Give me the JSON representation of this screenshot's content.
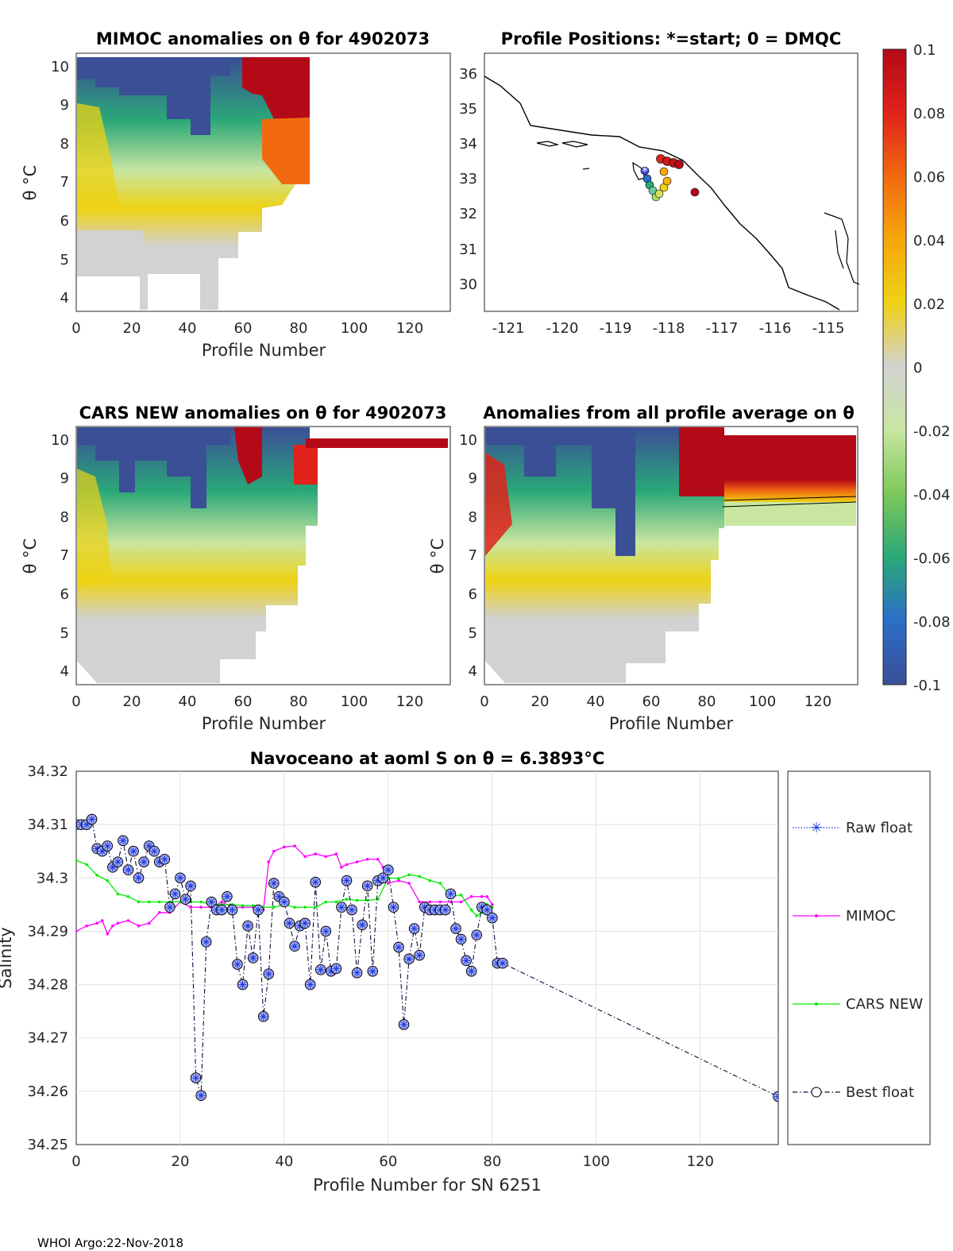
{
  "footer": "WHOI Argo:22-Nov-2018",
  "colors": {
    "raw": "#1f3bd6",
    "mimoc": "#ff00ff",
    "cars": "#00ee00",
    "best": "#0a0a3c",
    "marker_face": "#aab2ff"
  },
  "colorbar": {
    "ticks": [
      "0.1",
      "0.08",
      "0.06",
      "0.04",
      "0.02",
      "0",
      "-0.02",
      "-0.04",
      "-0.06",
      "-0.08",
      "-0.1"
    ],
    "stops": [
      "#b40a18",
      "#e0221a",
      "#f26a10",
      "#f5a60a",
      "#eed214",
      "#d2d2d2",
      "#c8e6a0",
      "#7cc85a",
      "#2aa878",
      "#2c6ec8",
      "#3a4f96"
    ]
  },
  "panels": {
    "mimoc": {
      "title": "MIMOC anomalies on θ  for 4902073",
      "ylabel": "θ °C",
      "xlabel": "Profile Number",
      "xticks": [
        "0",
        "20",
        "40",
        "60",
        "80",
        "100",
        "120"
      ],
      "yticks": [
        "4",
        "5",
        "6",
        "7",
        "8",
        "9",
        "10"
      ]
    },
    "map": {
      "title": "Profile Positions: *=start; 0 = DMQC",
      "xticks": [
        "-121",
        "-120",
        "-119",
        "-118",
        "-117",
        "-116",
        "-115"
      ],
      "yticks": [
        "30",
        "31",
        "32",
        "33",
        "34",
        "35",
        "36"
      ]
    },
    "cars": {
      "title": "CARS NEW anomalies on θ for 4902073",
      "ylabel": "θ °C",
      "xlabel": "Profile Number",
      "xticks": [
        "0",
        "20",
        "40",
        "60",
        "80",
        "100",
        "120"
      ],
      "yticks": [
        "4",
        "5",
        "6",
        "7",
        "8",
        "9",
        "10"
      ]
    },
    "avg": {
      "title": "Anomalies from all profile average on θ",
      "ylabel": "θ °C",
      "xlabel": "Profile Number",
      "xticks": [
        "0",
        "20",
        "40",
        "60",
        "80",
        "100",
        "120"
      ],
      "yticks": [
        "4",
        "5",
        "6",
        "7",
        "8",
        "9",
        "10"
      ]
    }
  },
  "chart_data": {
    "type": "line",
    "title": "Navoceano at aoml S on θ = 6.3893°C",
    "xlabel": "Profile Number for SN 6251",
    "ylabel": "Salinity",
    "xlim": [
      0,
      135
    ],
    "ylim": [
      34.25,
      34.32
    ],
    "xticks": [
      "0",
      "20",
      "40",
      "60",
      "80",
      "100",
      "120"
    ],
    "yticks": [
      "34.25",
      "34.26",
      "34.27",
      "34.28",
      "34.29",
      "34.3",
      "34.31",
      "34.32"
    ],
    "legend": [
      "Raw float",
      "MIMOC",
      "CARS NEW",
      "Best float"
    ],
    "series": [
      {
        "name": "Best float",
        "x": [
          0,
          1,
          2,
          3,
          4,
          5,
          6,
          7,
          8,
          9,
          10,
          11,
          12,
          13,
          14,
          15,
          16,
          17,
          18,
          19,
          20,
          21,
          22,
          23,
          24,
          25,
          26,
          27,
          28,
          29,
          30,
          31,
          32,
          33,
          34,
          35,
          36,
          37,
          38,
          39,
          40,
          41,
          42,
          43,
          44,
          45,
          46,
          47,
          48,
          49,
          50,
          51,
          52,
          53,
          54,
          55,
          56,
          57,
          58,
          59,
          60,
          61,
          62,
          63,
          64,
          65,
          66,
          67,
          68,
          69,
          70,
          71,
          72,
          73,
          74,
          75,
          76,
          77,
          78,
          79,
          80,
          81,
          82,
          135
        ],
        "y": [
          34.31,
          34.31,
          34.31,
          34.311,
          34.3055,
          34.305,
          34.306,
          34.302,
          34.303,
          34.307,
          34.3015,
          34.305,
          34.3,
          34.303,
          34.306,
          34.305,
          34.303,
          34.3035,
          34.2945,
          34.297,
          34.3,
          34.296,
          34.2985,
          34.2625,
          34.2592,
          34.288,
          34.2955,
          34.294,
          34.294,
          34.2965,
          34.294,
          34.2838,
          34.28,
          34.291,
          34.285,
          34.294,
          34.274,
          34.282,
          34.299,
          34.2965,
          34.2955,
          34.2915,
          34.2872,
          34.291,
          34.2915,
          34.28,
          34.2992,
          34.2828,
          34.29,
          34.2825,
          34.283,
          34.2945,
          34.2995,
          34.294,
          34.2822,
          34.2912,
          34.2985,
          34.2825,
          34.2995,
          34.3,
          34.3015,
          34.2945,
          34.287,
          34.2725,
          34.2848,
          34.2905,
          34.2855,
          34.2945,
          34.294,
          34.294,
          34.294,
          34.294,
          34.297,
          34.2905,
          34.2885,
          34.2845,
          34.2825,
          34.2893,
          34.2945,
          34.294,
          34.2925,
          34.284,
          34.284,
          34.259
        ]
      },
      {
        "name": "MIMOC",
        "x": [
          0,
          2,
          4,
          5,
          6,
          7,
          8,
          10,
          12,
          14,
          16,
          18,
          20,
          22,
          24,
          26,
          28,
          30,
          32,
          34,
          36,
          37,
          38,
          40,
          42,
          44,
          46,
          48,
          50,
          51,
          52,
          54,
          56,
          58,
          59,
          60,
          62,
          64,
          66,
          68,
          70,
          72,
          74,
          76,
          78,
          79,
          80
        ],
        "y": [
          34.29,
          34.291,
          34.2915,
          34.292,
          34.2895,
          34.291,
          34.2915,
          34.292,
          34.291,
          34.2915,
          34.2935,
          34.2935,
          34.2955,
          34.2945,
          34.2945,
          34.2945,
          34.2955,
          34.2945,
          34.2945,
          34.2945,
          34.294,
          34.303,
          34.305,
          34.3058,
          34.306,
          34.304,
          34.3045,
          34.304,
          34.3045,
          34.302,
          34.3025,
          34.303,
          34.3035,
          34.3035,
          34.302,
          34.299,
          34.2995,
          34.299,
          34.2955,
          34.2955,
          34.2955,
          34.2955,
          34.2955,
          34.2965,
          34.2965,
          34.2965,
          34.295
        ]
      },
      {
        "name": "CARS NEW",
        "x": [
          0,
          2,
          4,
          6,
          8,
          10,
          12,
          14,
          16,
          18,
          20,
          22,
          24,
          26,
          28,
          30,
          32,
          34,
          36,
          38,
          40,
          42,
          44,
          46,
          48,
          50,
          52,
          54,
          56,
          58,
          60,
          62,
          64,
          66,
          68,
          70,
          72,
          74,
          76,
          77,
          78,
          79,
          80
        ],
        "y": [
          34.3033,
          34.3025,
          34.3005,
          34.2995,
          34.297,
          34.2965,
          34.2955,
          34.2955,
          34.2955,
          34.2955,
          34.2955,
          34.2955,
          34.2955,
          34.295,
          34.295,
          34.295,
          34.2948,
          34.2948,
          34.2945,
          34.2945,
          34.295,
          34.2945,
          34.2945,
          34.2945,
          34.2955,
          34.2955,
          34.296,
          34.2958,
          34.2958,
          34.296,
          34.3,
          34.2999,
          34.3006,
          34.3003,
          34.2995,
          34.299,
          34.2965,
          34.2968,
          34.294,
          34.2929,
          34.2935,
          34.295,
          34.2945
        ]
      }
    ]
  }
}
